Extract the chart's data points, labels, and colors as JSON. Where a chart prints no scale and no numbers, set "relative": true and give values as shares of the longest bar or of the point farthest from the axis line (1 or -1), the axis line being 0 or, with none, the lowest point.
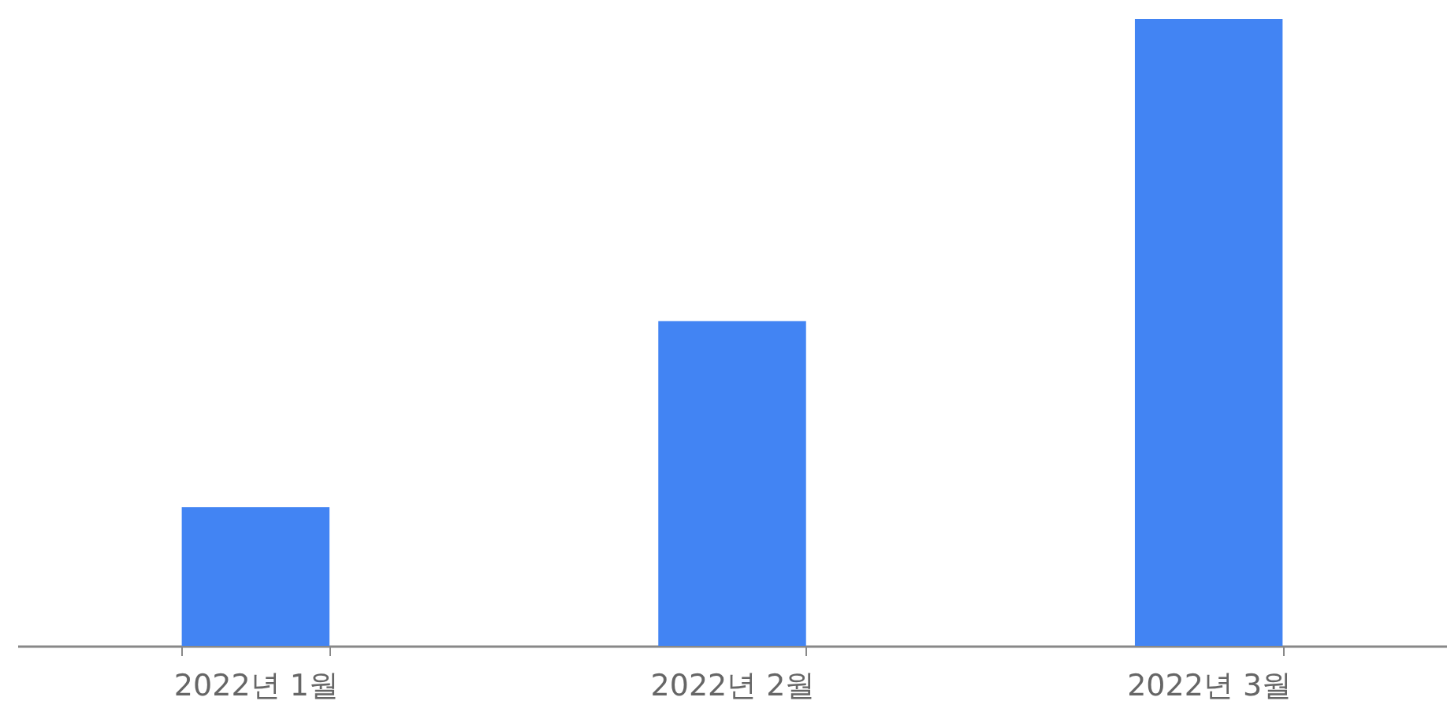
{
  "chart_data": {
    "type": "bar",
    "categories": [
      "2022년 1월",
      "2022년 2월",
      "2022년 3월"
    ],
    "values": [
      0.221,
      0.518,
      1
    ],
    "color": "#4284f3",
    "relative": true
  }
}
